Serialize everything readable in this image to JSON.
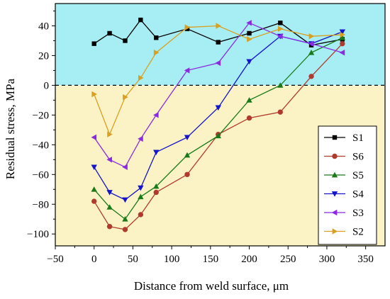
{
  "chart_data": {
    "type": "line",
    "title": "",
    "xlabel": "Distance from weld surface, μm",
    "ylabel": "Residual stress, MPa",
    "xlim": [
      -50,
      375
    ],
    "ylim": [
      -108,
      55
    ],
    "xticks": [
      -50,
      0,
      50,
      100,
      150,
      200,
      250,
      300,
      350
    ],
    "yticks": [
      -100,
      -80,
      -60,
      -40,
      -20,
      0,
      20,
      40
    ],
    "background": {
      "positive_color": "#a6eef4",
      "negative_color": "#fbf3c5"
    },
    "zero_line": {
      "style": "dashed",
      "color": "#000000"
    },
    "legend_position": "right-middle",
    "series": [
      {
        "name": "S1",
        "color": "#000000",
        "marker": "square",
        "x": [
          0,
          20,
          40,
          60,
          80,
          120,
          160,
          200,
          240,
          280,
          320
        ],
        "y": [
          28,
          35,
          30,
          44,
          32,
          38,
          29,
          35,
          42,
          27,
          31
        ]
      },
      {
        "name": "S6",
        "color": "#b03a2e",
        "marker": "circle",
        "x": [
          0,
          20,
          40,
          60,
          80,
          120,
          160,
          200,
          240,
          280,
          320
        ],
        "y": [
          -78,
          -95,
          -97,
          -87,
          -72,
          -60,
          -33,
          -22,
          -18,
          6,
          28
        ]
      },
      {
        "name": "S5",
        "color": "#1a7a1a",
        "marker": "triangle-up",
        "x": [
          0,
          20,
          40,
          60,
          80,
          120,
          160,
          200,
          240,
          280,
          320
        ],
        "y": [
          -70,
          -82,
          -90,
          -75,
          -68,
          -47,
          -34,
          -10,
          0,
          22,
          32
        ]
      },
      {
        "name": "S4",
        "color": "#1414cc",
        "marker": "triangle-down",
        "x": [
          0,
          20,
          40,
          60,
          80,
          120,
          160,
          200,
          240,
          280,
          320
        ],
        "y": [
          -55,
          -72,
          -77,
          -69,
          -45,
          -35,
          -15,
          16,
          33,
          28,
          36
        ]
      },
      {
        "name": "S3",
        "color": "#8a2be2",
        "marker": "triangle-left",
        "x": [
          0,
          20,
          40,
          60,
          80,
          120,
          160,
          200,
          240,
          280,
          320
        ],
        "y": [
          -35,
          -50,
          -55,
          -36,
          -20,
          10,
          15,
          42,
          33,
          28,
          22
        ]
      },
      {
        "name": "S2",
        "color": "#d9a020",
        "marker": "triangle-right",
        "x": [
          0,
          20,
          40,
          60,
          80,
          120,
          160,
          200,
          240,
          280,
          320
        ],
        "y": [
          -6,
          -33,
          -8,
          5,
          22,
          39,
          40,
          31,
          38,
          33,
          34
        ]
      }
    ]
  }
}
